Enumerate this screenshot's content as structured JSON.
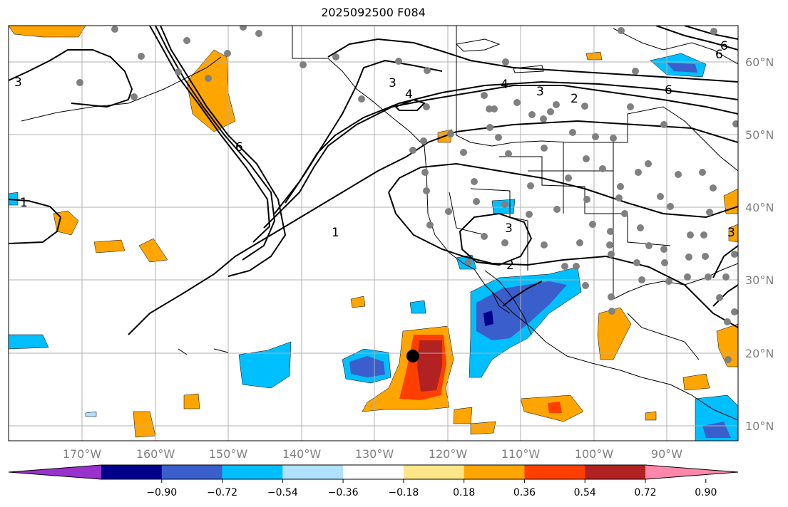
{
  "title": "2025092500 F084",
  "lat_ticks": [
    "60°N",
    "50°N",
    "40°N",
    "30°N",
    "20°N",
    "10°N"
  ],
  "lon_ticks": [
    "170°W",
    "160°W",
    "150°W",
    "140°W",
    "130°W",
    "120°W",
    "110°W",
    "100°W",
    "90°W"
  ],
  "colorbar": {
    "ticks": [
      "−0.90",
      "−0.72",
      "−0.54",
      "−0.36",
      "−0.18",
      "0.18",
      "0.36",
      "0.54",
      "0.72",
      "0.90"
    ],
    "colors": [
      "#9932cc",
      "#00008b",
      "#3a5fcd",
      "#00bfff",
      "#b0e2ff",
      "#ffffff",
      "#fde68a",
      "#ffa500",
      "#ff3f00",
      "#b22222",
      "#ff88aa"
    ]
  },
  "contour_labels": [
    "3",
    "6",
    "3",
    "4",
    "4",
    "3",
    "2",
    "6",
    "6",
    "1",
    "1",
    "3",
    "2",
    "3",
    "6"
  ],
  "colors": {
    "contour": "#000000",
    "station": "#808080",
    "grid": "#b0b0b0",
    "marker": "#000000"
  }
}
